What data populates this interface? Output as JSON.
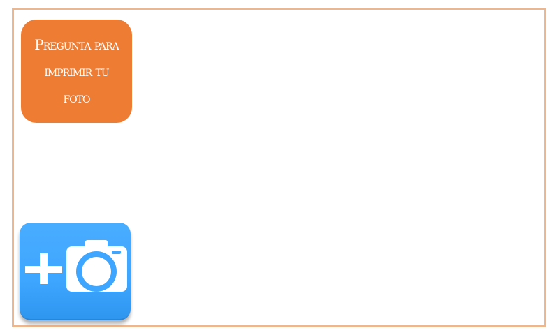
{
  "print_prompt": {
    "label": "Pregunta para imprimir tu foto",
    "bg_color": "#ee7d33",
    "text_color": "#ffffff"
  },
  "add_photo": {
    "icon": "add-camera-icon",
    "bg_color": "#3ea6ff"
  },
  "frame": {
    "border_color": "#ecb78f"
  }
}
